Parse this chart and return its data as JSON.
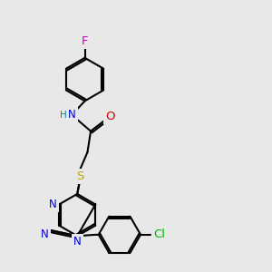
{
  "bg_color": "#e8e8e8",
  "bond_lw": 1.5,
  "atom_colors": {
    "F": "#cc00cc",
    "N": "#0000dd",
    "O": "#dd0000",
    "S": "#bbaa00",
    "Cl": "#00bb00",
    "H": "#008888",
    "C": "#000000"
  },
  "font_size": 8.5,
  "fig_w": 3.0,
  "fig_h": 3.0,
  "dpi": 100,
  "xlim": [
    0,
    10
  ],
  "ylim": [
    0,
    10
  ]
}
